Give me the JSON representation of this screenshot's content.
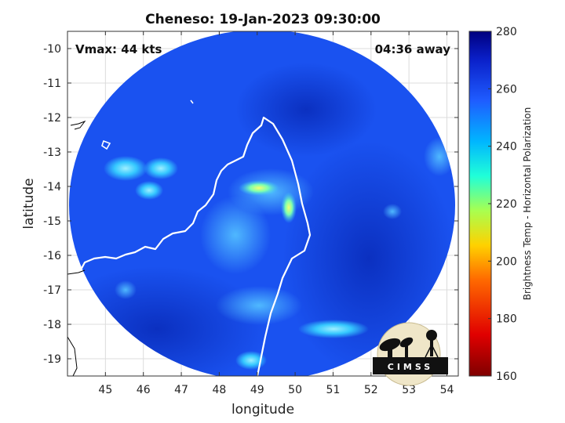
{
  "figure": {
    "title": "Cheneso: 19-Jan-2023 09:30:00",
    "vmax_label": "Vmax: 44 kts",
    "time_label": "04:36 away",
    "xlabel": "longitude",
    "ylabel": "latitude",
    "logo_text": "CIMSS"
  },
  "map": {
    "x_ticks": [
      "45",
      "46",
      "47",
      "48",
      "49",
      "50",
      "51",
      "52",
      "53",
      "54"
    ],
    "y_ticks": [
      "-10",
      "-11",
      "-12",
      "-13",
      "-14",
      "-15",
      "-16",
      "-17",
      "-18",
      "-19"
    ],
    "xlim": [
      44,
      54.3
    ],
    "ylim": [
      -19.5,
      -9.5
    ],
    "grid": true,
    "swath_shape": "circular",
    "coastline_color": "#ffffff"
  },
  "colorbar": {
    "label": "Brightness Temp - Horizontal Polarization",
    "ticks": [
      "280",
      "260",
      "240",
      "220",
      "200",
      "180",
      "160"
    ],
    "range": [
      160,
      280
    ],
    "colormap": "jet"
  },
  "colors": {
    "swath_base": "#1a52f0",
    "warm_region": "#0d3fd6",
    "cold_feature": "#3ad0ff"
  }
}
